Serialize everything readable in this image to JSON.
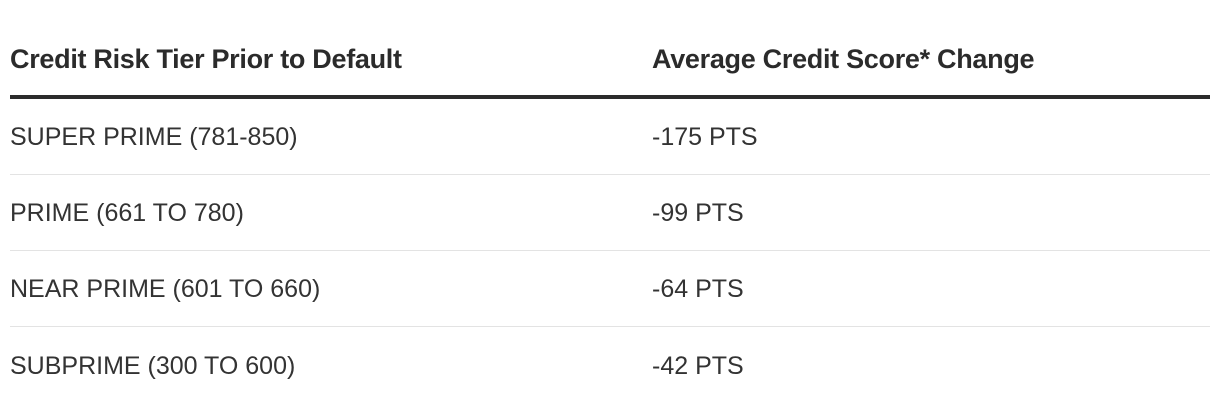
{
  "table": {
    "headers": [
      "Credit Risk Tier Prior to Default",
      "Average Credit Score* Change"
    ],
    "rows": [
      [
        "SUPER PRIME (781-850)",
        "-175 PTS"
      ],
      [
        "PRIME (661 TO 780)",
        "-99 PTS"
      ],
      [
        "NEAR PRIME (601 TO 660)",
        "-64 PTS"
      ],
      [
        "SUBPRIME (300 TO 600)",
        "-42 PTS"
      ]
    ]
  }
}
